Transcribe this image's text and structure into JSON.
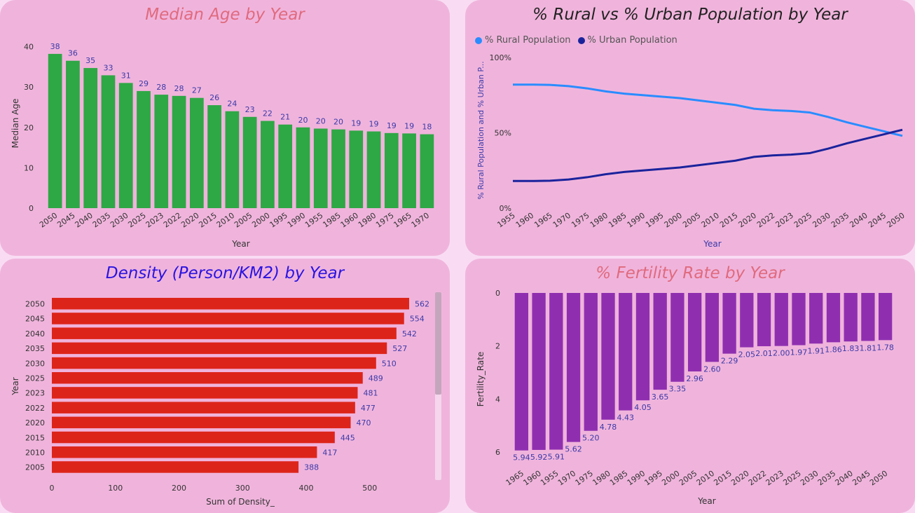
{
  "colors": {
    "panel": "#f0b4dc",
    "median_bar": "#2ea745",
    "density_bar": "#dd241a",
    "fertility_bar": "#8f2fb0",
    "rural": "#2a8cff",
    "urban": "#1a239c",
    "label": "#3b3aa8",
    "title_pink": "#e06a7e",
    "title_dark": "#222222",
    "title_blue": "#2a14e0"
  },
  "chart_data": [
    {
      "type": "bar",
      "title": "Median Age by Year",
      "xlabel": "Year",
      "ylabel": "Median Age",
      "categories": [
        "2050",
        "2045",
        "2040",
        "2035",
        "2030",
        "2025",
        "2023",
        "2022",
        "2020",
        "2015",
        "2010",
        "2005",
        "2000",
        "1995",
        "1990",
        "1955",
        "1985",
        "1960",
        "1980",
        "1975",
        "1965",
        "1970"
      ],
      "values": [
        38.2,
        36.5,
        34.7,
        32.9,
        31.0,
        29.0,
        28.1,
        27.8,
        27.3,
        25.5,
        24.0,
        22.6,
        21.6,
        20.7,
        20.0,
        19.7,
        19.5,
        19.2,
        19.0,
        18.6,
        18.5,
        18.3
      ],
      "labels": [
        "38",
        "36",
        "35",
        "33",
        "31",
        "29",
        "28",
        "28",
        "27",
        "26",
        "24",
        "23",
        "22",
        "21",
        "20",
        "20",
        "20",
        "19",
        "19",
        "19",
        "19",
        "18"
      ],
      "yticks": [
        "0",
        "10",
        "20",
        "30",
        "40"
      ],
      "ylim": [
        0,
        42
      ]
    },
    {
      "type": "line",
      "title": "% Rural vs % Urban Population by Year",
      "xlabel": "Year",
      "ylabel": "% Rural Population and % Urban P...",
      "x": [
        "1955",
        "1960",
        "1965",
        "1970",
        "1975",
        "1980",
        "1985",
        "1990",
        "1995",
        "2000",
        "2005",
        "2010",
        "2015",
        "2020",
        "2022",
        "2023",
        "2025",
        "2030",
        "2035",
        "2040",
        "2045",
        "2050"
      ],
      "series": [
        {
          "name": "% Rural Population",
          "values": [
            82,
            82,
            81.8,
            81,
            79.5,
            77.5,
            76,
            75,
            74,
            73,
            71.5,
            70,
            68.5,
            66,
            65,
            64.5,
            63.5,
            60.5,
            57,
            54,
            51,
            48
          ]
        },
        {
          "name": "% Urban Population",
          "values": [
            18,
            18,
            18.2,
            19,
            20.5,
            22.5,
            24,
            25,
            26,
            27,
            28.5,
            30,
            31.5,
            34,
            35,
            35.5,
            36.5,
            39.5,
            43,
            46,
            49,
            52
          ]
        }
      ],
      "yticks": [
        "0%",
        "50%",
        "100%"
      ],
      "ylim": [
        0,
        100
      ],
      "legend": "top-left"
    },
    {
      "type": "bar",
      "orientation": "horizontal",
      "title": "Density (Person/KM2) by Year",
      "xlabel": "Sum of Density_",
      "ylabel": "Year",
      "categories": [
        "2050",
        "2045",
        "2040",
        "2035",
        "2030",
        "2025",
        "2023",
        "2022",
        "2020",
        "2015",
        "2010",
        "2005"
      ],
      "values": [
        562,
        554,
        542,
        527,
        510,
        489,
        481,
        477,
        470,
        445,
        417,
        388
      ],
      "xticks": [
        "0",
        "100",
        "200",
        "300",
        "400",
        "500"
      ],
      "xlim": [
        0,
        600
      ]
    },
    {
      "type": "bar",
      "title": "% Fertility Rate by Year",
      "xlabel": "Year",
      "ylabel": "Fertility_Rate",
      "y_inverted": true,
      "categories": [
        "1965",
        "1960",
        "1955",
        "1970",
        "1975",
        "1980",
        "1985",
        "1990",
        "1995",
        "2000",
        "2005",
        "2010",
        "2015",
        "2020",
        "2022",
        "2023",
        "2025",
        "2030",
        "2035",
        "2040",
        "2045",
        "2050"
      ],
      "values": [
        5.94,
        5.92,
        5.91,
        5.62,
        5.2,
        4.78,
        4.43,
        4.05,
        3.65,
        3.35,
        2.96,
        2.6,
        2.29,
        2.05,
        2.01,
        2.0,
        1.97,
        1.91,
        1.86,
        1.83,
        1.81,
        1.78
      ],
      "labels": [
        "5.94",
        "5.92",
        "5.91",
        "5.62",
        "5.20",
        "4.78",
        "4.43",
        "4.05",
        "3.65",
        "3.35",
        "2.96",
        "2.60",
        "2.29",
        "2.05",
        "2.01",
        "2.00",
        "1.97",
        "1.91",
        "1.86",
        "1.83",
        "1.81",
        "1.78"
      ],
      "yticks": [
        "0",
        "2",
        "4",
        "6"
      ],
      "ylim": [
        0,
        6
      ]
    }
  ]
}
